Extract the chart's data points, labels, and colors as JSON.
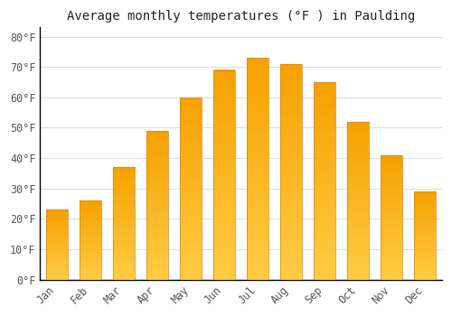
{
  "title": "Average monthly temperatures (°F ) in Paulding",
  "months": [
    "Jan",
    "Feb",
    "Mar",
    "Apr",
    "May",
    "Jun",
    "Jul",
    "Aug",
    "Sep",
    "Oct",
    "Nov",
    "Dec"
  ],
  "values": [
    23,
    26,
    37,
    49,
    60,
    69,
    73,
    71,
    65,
    52,
    41,
    29
  ],
  "bar_color": "#FFA500",
  "bar_edge_color": "#E08000",
  "bar_gradient_top": "#F5A000",
  "bar_gradient_bottom": "#FFCC44",
  "background_color": "#FFFFFF",
  "plot_bg_color": "#FFFFFF",
  "grid_color": "#DDDDDD",
  "ylim": [
    0,
    83
  ],
  "yticks": [
    0,
    10,
    20,
    30,
    40,
    50,
    60,
    70,
    80
  ],
  "ytick_labels": [
    "0°F",
    "10°F",
    "20°F",
    "30°F",
    "40°F",
    "50°F",
    "60°F",
    "70°F",
    "80°F"
  ],
  "title_fontsize": 10,
  "tick_fontsize": 8.5,
  "bar_width": 0.65,
  "spine_color": "#000000",
  "tick_color": "#555555"
}
